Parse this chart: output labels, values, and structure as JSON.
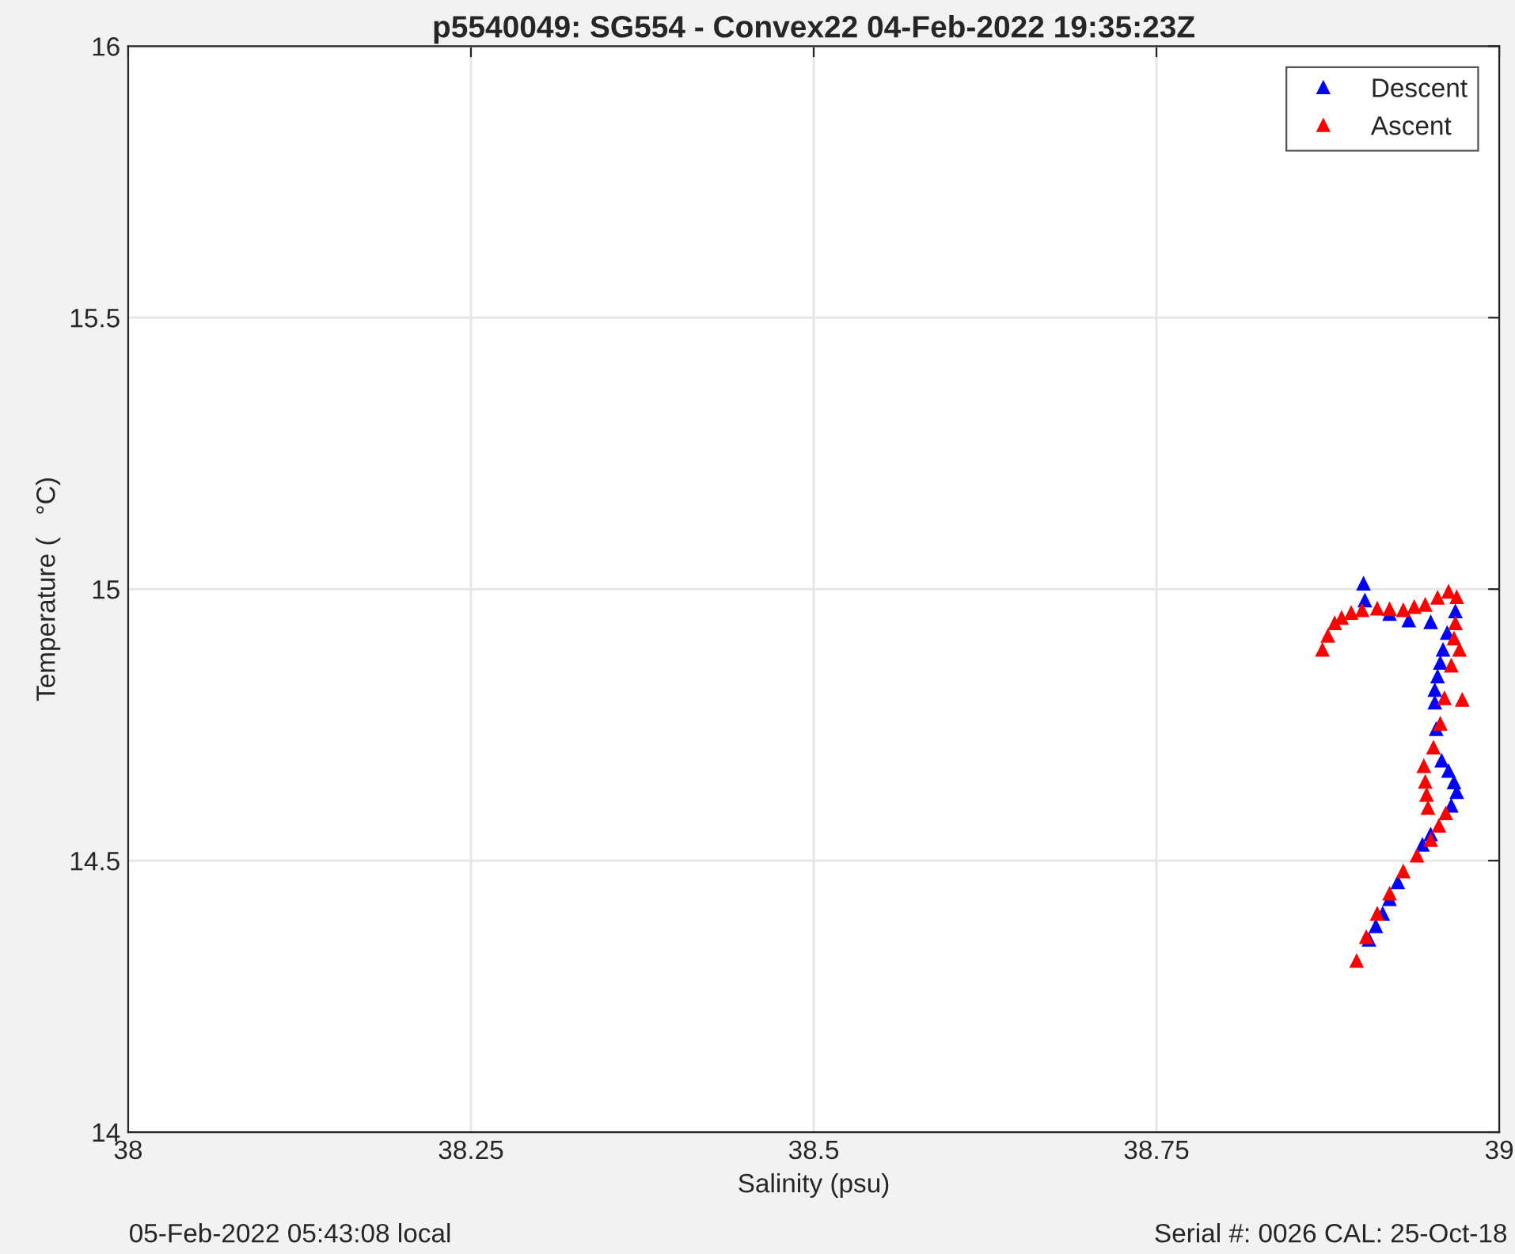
{
  "chart_data": {
    "type": "scatter",
    "title": "p5540049: SG554 - Convex22 04-Feb-2022 19:35:23Z",
    "xlabel": "Salinity (psu)",
    "ylabel": "Temperature (   °C)",
    "annotations": [
      "05-Feb-2022 05:43:08 local",
      "Serial #: 0026 CAL: 25-Oct-18"
    ],
    "xlim": [
      38,
      39
    ],
    "xticks": [
      38,
      38.25,
      38.5,
      38.75,
      39
    ],
    "ylim": [
      14,
      16
    ],
    "yticks": [
      14,
      14.5,
      15,
      15.5,
      16
    ],
    "grid": true,
    "legend": "top right",
    "marker": "triangle",
    "series": [
      {
        "name": "Descent",
        "color": "#0000ff",
        "x": [
          38.901,
          38.902,
          38.92,
          38.934,
          38.95,
          38.968,
          38.962,
          38.959,
          38.957,
          38.955,
          38.953,
          38.953,
          38.954,
          38.958,
          38.963,
          38.967,
          38.969,
          38.965,
          38.95,
          38.944,
          38.926,
          38.92,
          38.915,
          38.91,
          38.905
        ],
        "values": [
          15.011,
          14.98,
          14.955,
          14.943,
          14.94,
          14.96,
          14.92,
          14.889,
          14.865,
          14.84,
          14.815,
          14.792,
          14.743,
          14.685,
          14.666,
          14.645,
          14.627,
          14.602,
          14.549,
          14.53,
          14.461,
          14.43,
          14.403,
          14.38,
          14.355
        ]
      },
      {
        "name": "Ascent",
        "color": "#ff0000",
        "x": [
          38.896,
          38.903,
          38.911,
          38.92,
          38.93,
          38.94,
          38.95,
          38.956,
          38.961,
          38.948,
          38.947,
          38.946,
          38.945,
          38.952,
          38.957,
          38.96,
          38.965,
          38.971,
          38.967,
          38.968,
          38.969,
          38.963,
          38.955,
          38.946,
          38.938,
          38.93,
          38.92,
          38.911,
          38.9,
          38.892,
          38.885,
          38.88,
          38.875,
          38.871,
          38.973
        ],
        "values": [
          14.316,
          14.36,
          14.403,
          14.44,
          14.481,
          14.51,
          14.539,
          14.565,
          14.588,
          14.598,
          14.622,
          14.646,
          14.675,
          14.709,
          14.753,
          14.8,
          14.86,
          14.889,
          14.91,
          14.938,
          14.986,
          14.996,
          14.985,
          14.972,
          14.968,
          14.962,
          14.964,
          14.965,
          14.962,
          14.957,
          14.948,
          14.938,
          14.915,
          14.889,
          14.797
        ]
      }
    ]
  }
}
